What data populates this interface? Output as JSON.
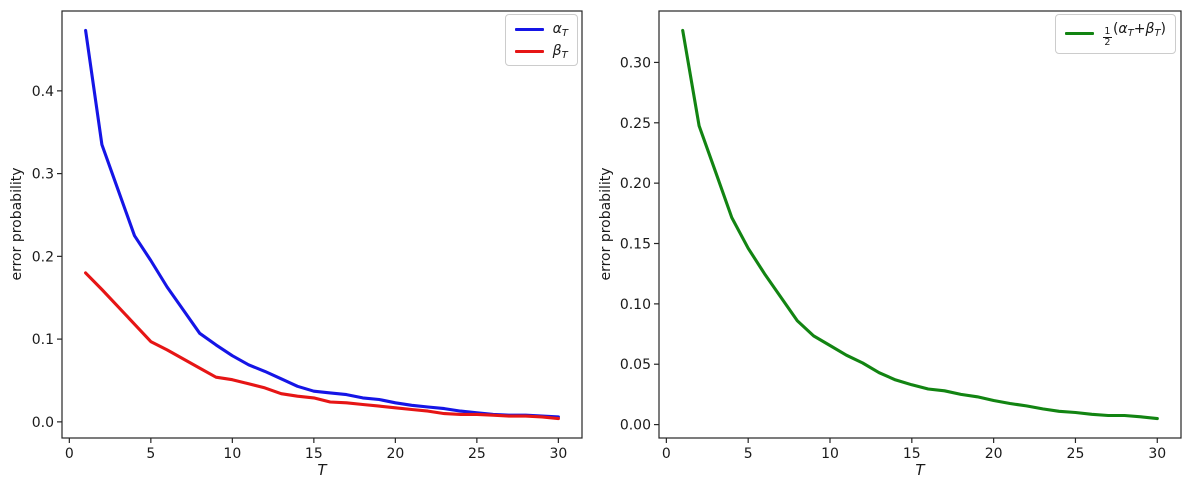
{
  "figure": {
    "background": "#ffffff",
    "spine_color": "#262626",
    "tick_color": "#262626",
    "text_color": "#1a1a1a",
    "legend_border": "#cccccc"
  },
  "chart_data": [
    {
      "type": "line",
      "panel": "left",
      "title": "",
      "xlabel": "T",
      "ylabel": "error probability",
      "grid": false,
      "legend_position": "upper right",
      "xlim": [
        -0.45,
        31.45
      ],
      "ylim": [
        -0.0195,
        0.4965
      ],
      "xticks": {
        "values": [
          0,
          5,
          10,
          15,
          20,
          25,
          30
        ],
        "labels": [
          "0",
          "5",
          "10",
          "15",
          "20",
          "25",
          "30"
        ]
      },
      "yticks": {
        "values": [
          0.0,
          0.1,
          0.2,
          0.3,
          0.4
        ],
        "labels": [
          "0.0",
          "0.1",
          "0.2",
          "0.3",
          "0.4"
        ]
      },
      "x": [
        1,
        2,
        3,
        4,
        5,
        6,
        7,
        8,
        9,
        10,
        11,
        12,
        13,
        14,
        15,
        16,
        17,
        18,
        19,
        20,
        21,
        22,
        23,
        24,
        25,
        26,
        27,
        28,
        29,
        30
      ],
      "series": [
        {
          "name": "alpha_T",
          "label": "α_T",
          "color": "#1515e6",
          "values": [
            0.473,
            0.335,
            0.28,
            0.225,
            0.195,
            0.163,
            0.135,
            0.107,
            0.093,
            0.08,
            0.069,
            0.061,
            0.052,
            0.043,
            0.037,
            0.035,
            0.033,
            0.029,
            0.027,
            0.023,
            0.02,
            0.018,
            0.016,
            0.013,
            0.011,
            0.009,
            0.008,
            0.008,
            0.007,
            0.006
          ]
        },
        {
          "name": "beta_T",
          "label": "β_T",
          "color": "#e61515",
          "values": [
            0.18,
            0.16,
            0.139,
            0.118,
            0.097,
            0.087,
            0.076,
            0.065,
            0.054,
            0.051,
            0.046,
            0.041,
            0.034,
            0.031,
            0.029,
            0.024,
            0.023,
            0.021,
            0.019,
            0.017,
            0.015,
            0.013,
            0.01,
            0.009,
            0.009,
            0.008,
            0.007,
            0.007,
            0.006,
            0.004
          ]
        }
      ],
      "legend_entries": [
        {
          "series": "alpha_T",
          "color": "#1515e6",
          "text": "α_T",
          "tokens": [
            {
              "t": "α",
              "italic": true
            },
            {
              "sub": "T"
            }
          ]
        },
        {
          "series": "beta_T",
          "color": "#e61515",
          "text": "β_T",
          "tokens": [
            {
              "t": "β",
              "italic": true
            },
            {
              "sub": "T"
            }
          ]
        }
      ]
    },
    {
      "type": "line",
      "panel": "right",
      "title": "",
      "xlabel": "T",
      "ylabel": "error probability",
      "grid": false,
      "legend_position": "upper right",
      "xlim": [
        -0.45,
        31.45
      ],
      "ylim": [
        -0.0111,
        0.3426
      ],
      "xticks": {
        "values": [
          0,
          5,
          10,
          15,
          20,
          25,
          30
        ],
        "labels": [
          "0",
          "5",
          "10",
          "15",
          "20",
          "25",
          "30"
        ]
      },
      "yticks": {
        "values": [
          0.0,
          0.05,
          0.1,
          0.15,
          0.2,
          0.25,
          0.3
        ],
        "labels": [
          "0.00",
          "0.05",
          "0.10",
          "0.15",
          "0.20",
          "0.25",
          "0.30"
        ]
      },
      "x": [
        1,
        2,
        3,
        4,
        5,
        6,
        7,
        8,
        9,
        10,
        11,
        12,
        13,
        14,
        15,
        16,
        17,
        18,
        19,
        20,
        21,
        22,
        23,
        24,
        25,
        26,
        27,
        28,
        29,
        30
      ],
      "series": [
        {
          "name": "mean_error",
          "label": "1/2(α_T + β_T)",
          "color": "#128412",
          "values": [
            0.3265,
            0.2475,
            0.2095,
            0.1715,
            0.146,
            0.125,
            0.1055,
            0.086,
            0.0735,
            0.0655,
            0.0575,
            0.051,
            0.043,
            0.037,
            0.033,
            0.0295,
            0.028,
            0.025,
            0.023,
            0.02,
            0.0175,
            0.0155,
            0.013,
            0.011,
            0.01,
            0.0085,
            0.0075,
            0.0075,
            0.0065,
            0.005
          ]
        }
      ],
      "legend_entries": [
        {
          "series": "mean_error",
          "color": "#128412",
          "text": "1/2(α_T + β_T)",
          "tokens": [
            {
              "frac": {
                "num": "1",
                "den": "2"
              }
            },
            {
              "t": "("
            },
            {
              "t": "α",
              "italic": true
            },
            {
              "sub": "T"
            },
            {
              "t": " + "
            },
            {
              "t": "β",
              "italic": true
            },
            {
              "sub": "T"
            },
            {
              "t": ")"
            }
          ]
        }
      ]
    }
  ]
}
